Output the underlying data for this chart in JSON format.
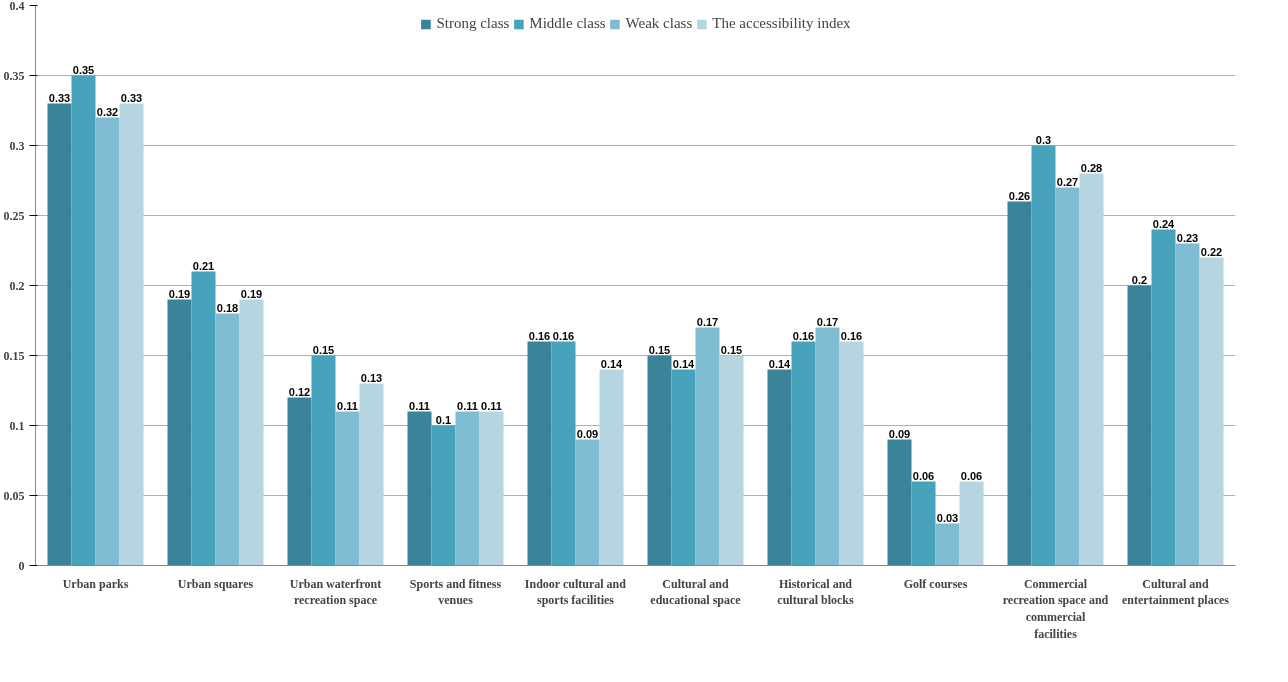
{
  "chart_data": {
    "type": "bar",
    "categories": [
      "Urban parks",
      "Urban squares",
      "Urban waterfront recreation space",
      "Sports and fitness venues",
      "Indoor cultural and sports facilities",
      "Cultural and educational space",
      "Historical and cultural blocks",
      "Golf courses",
      "Commercial recreation space and commercial facilities",
      "Cultural and entertainment places"
    ],
    "series": [
      {
        "name": "Strong class",
        "color": "#3a8499",
        "values": [
          0.33,
          0.19,
          0.12,
          0.11,
          0.16,
          0.15,
          0.14,
          0.09,
          0.26,
          0.2
        ]
      },
      {
        "name": "Middle class",
        "color": "#46a3bb",
        "values": [
          0.35,
          0.21,
          0.15,
          0.1,
          0.16,
          0.14,
          0.16,
          0.06,
          0.3,
          0.24
        ]
      },
      {
        "name": "Weak class",
        "color": "#7fbcd2",
        "values": [
          0.32,
          0.18,
          0.11,
          0.11,
          0.09,
          0.17,
          0.17,
          0.03,
          0.27,
          0.23
        ]
      },
      {
        "name": "The accessibility index",
        "color": "#b5d5e0",
        "values": [
          0.33,
          0.19,
          0.13,
          0.11,
          0.14,
          0.15,
          0.16,
          0.06,
          0.28,
          0.22
        ]
      }
    ],
    "ylim": [
      0,
      0.4
    ],
    "yticks": [
      0,
      0.05,
      0.1,
      0.15,
      0.2,
      0.25,
      0.3,
      0.35,
      0.4
    ],
    "grid": "y",
    "legend": "top",
    "data_labels": true
  }
}
